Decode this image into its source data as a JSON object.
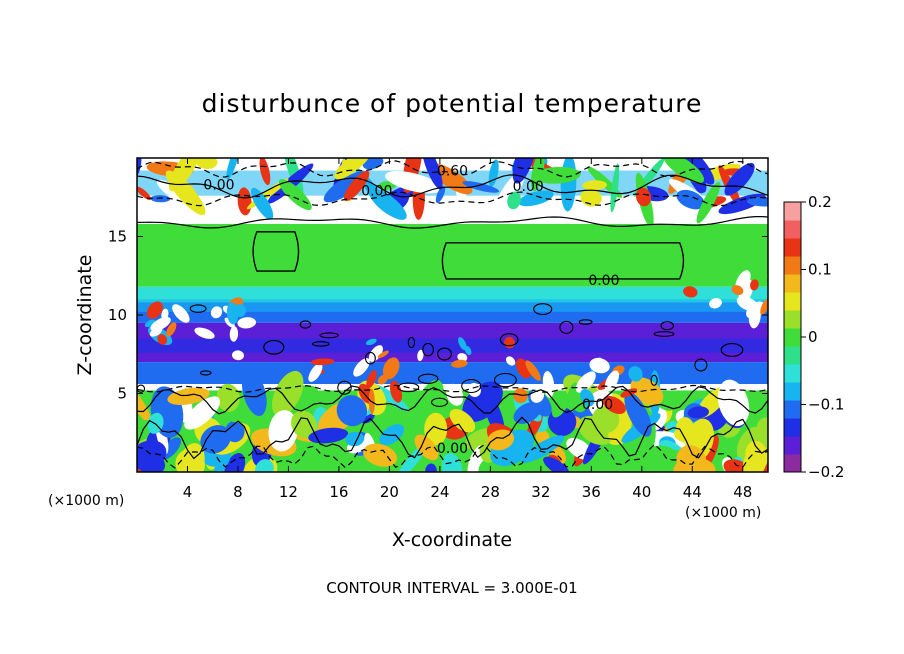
{
  "chart_data": {
    "type": "heatmap",
    "title": "disturbunce of potential temperature",
    "xlabel": "X-coordinate",
    "ylabel": "Z-coordinate",
    "x_unit": "(×1000 m)",
    "z_unit": "(×1000 m)",
    "xlim": [
      0,
      50
    ],
    "ylim": [
      0,
      20
    ],
    "x_ticks": [
      4,
      8,
      12,
      16,
      20,
      24,
      28,
      32,
      36,
      40,
      44,
      48
    ],
    "y_ticks": [
      5,
      10,
      15
    ],
    "colorbar": {
      "min": -0.2,
      "max": 0.2,
      "ticks": [
        0.2,
        0.1,
        0,
        -0.1,
        -0.2
      ],
      "tick_labels": [
        "0.2",
        "0.1",
        "0",
        "−0.1",
        "−0.2"
      ],
      "colors": [
        "#8c2ba0",
        "#5a1fd6",
        "#1f2fe6",
        "#1f6cf0",
        "#18b4f0",
        "#2ee0d8",
        "#2fe08a",
        "#3fdc3a",
        "#9ae02a",
        "#e6e61e",
        "#f2b81c",
        "#f27a16",
        "#e83414",
        "#f06060",
        "#f7a0a0"
      ]
    },
    "contour_interval": "CONTOUR INTERVAL = 3.000E-01",
    "contour_labels": [
      "0.00",
      "0.00",
      "0.60",
      "0.00",
      "0.00",
      "0.00",
      "0.00"
    ],
    "bands": [
      {
        "z_from": 17.2,
        "z_to": 20,
        "value": "mixed"
      },
      {
        "z_from": 11.8,
        "z_to": 15.8,
        "value": 0.0
      },
      {
        "z_from": 10.8,
        "z_to": 11.8,
        "value": -0.06
      },
      {
        "z_from": 9.5,
        "z_to": 10.8,
        "value": -0.11
      },
      {
        "z_from": 7.0,
        "z_to": 9.5,
        "value": -0.15
      },
      {
        "z_from": 5.6,
        "z_to": 7.0,
        "value": -0.12
      },
      {
        "z_from": 0,
        "z_to": 5.2,
        "value": "turbulent"
      }
    ]
  }
}
